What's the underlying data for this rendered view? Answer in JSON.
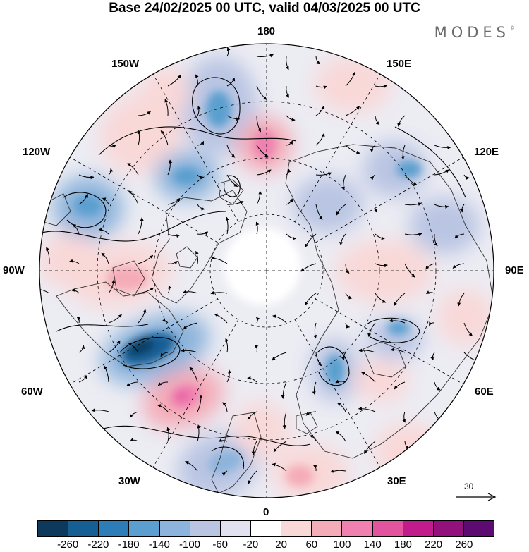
{
  "title": "Base 24/02/2025 00 UTC, valid 04/03/2025 00 UTC",
  "brand": "MODES",
  "brand_mark": "©",
  "map": {
    "projection": "north-polar-stereographic",
    "longitude_labels": {
      "top": "180",
      "bottom": "0",
      "left": "90W",
      "right": "90E",
      "upper_left_1": "150W",
      "upper_left_2": "120W",
      "lower_left_1": "60W",
      "lower_left_2": "30W",
      "upper_right_1": "150E",
      "upper_right_2": "120E",
      "lower_right_1": "60E",
      "lower_right_2": "30E"
    },
    "reference_vector": {
      "value": "30"
    },
    "colors": {
      "land_outline": "#333333",
      "grid": "#000000",
      "arrow": "#000000"
    }
  },
  "colorbar": {
    "ticks": [
      "-260",
      "-220",
      "-180",
      "-140",
      "-100",
      "-60",
      "-20",
      "20",
      "60",
      "100",
      "140",
      "180",
      "220",
      "260"
    ],
    "colors": [
      "#0d3a5c",
      "#165f95",
      "#2c7db8",
      "#5a9fcf",
      "#8db4dc",
      "#b9c5e3",
      "#e1e1ef",
      "#ffffff",
      "#f9d8d8",
      "#f4acb8",
      "#ef80b0",
      "#e3549f",
      "#c21c8c",
      "#92117c",
      "#5d0a73"
    ]
  }
}
